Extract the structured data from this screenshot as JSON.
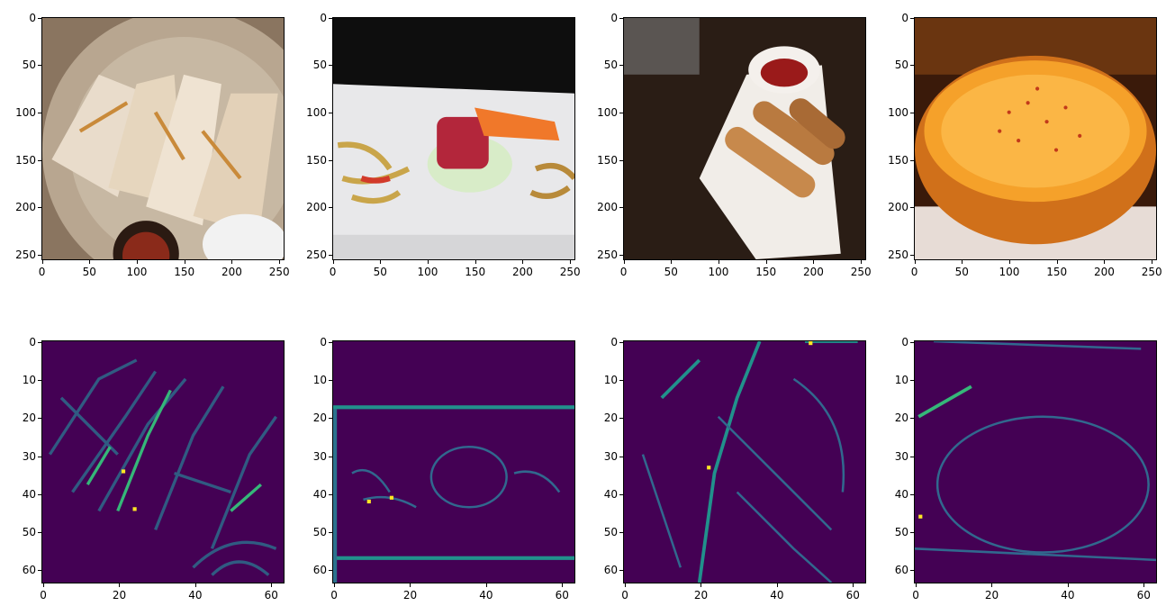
{
  "figure": {
    "rows": [
      {
        "kind": "photo",
        "x_ticks": [
          "0",
          "50",
          "100",
          "150",
          "200",
          "250"
        ],
        "y_ticks": [
          "0",
          "50",
          "100",
          "150",
          "200",
          "250"
        ],
        "panels": [
          {
            "subject": "quesadilla-plate"
          },
          {
            "subject": "dessert-plate"
          },
          {
            "subject": "spring-rolls-plate"
          },
          {
            "subject": "soup-bowl"
          }
        ]
      },
      {
        "kind": "feature-map",
        "x_ticks": [
          "0",
          "20",
          "40",
          "60"
        ],
        "y_ticks": [
          "0",
          "10",
          "20",
          "30",
          "40",
          "50",
          "60"
        ],
        "colormap": "viridis",
        "panels": [
          {
            "subject": "quesadilla-edges"
          },
          {
            "subject": "dessert-edges"
          },
          {
            "subject": "spring-rolls-edges"
          },
          {
            "subject": "soup-edges"
          }
        ]
      }
    ],
    "colors": {
      "viridis_low": "#440154",
      "viridis_mid": "#21918c",
      "viridis_high": "#fde725"
    }
  }
}
